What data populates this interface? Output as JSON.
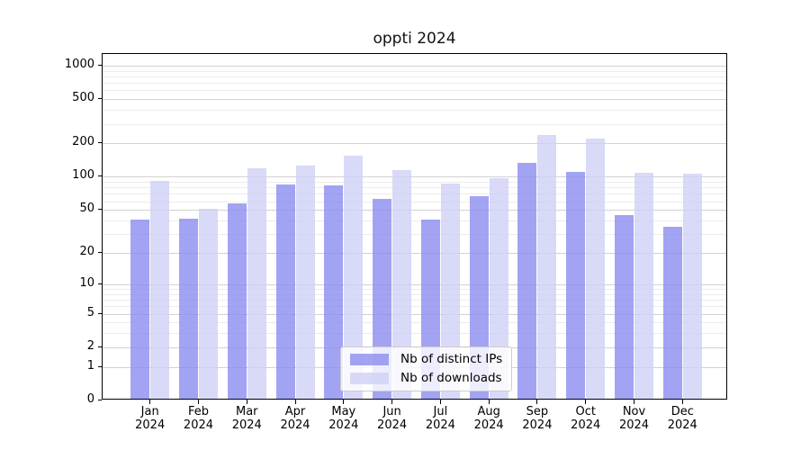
{
  "chart_data": {
    "type": "bar",
    "title": "oppti 2024",
    "categories": [
      "Jan",
      "Feb",
      "Mar",
      "Apr",
      "May",
      "Jun",
      "Jul",
      "Aug",
      "Sep",
      "Oct",
      "Nov",
      "Dec"
    ],
    "year_label": "2024",
    "series": [
      {
        "name": "Nb of distinct IPs",
        "color": "#8c8cf0",
        "values": [
          39,
          40,
          55,
          82,
          81,
          61,
          39,
          64,
          128,
          107,
          43,
          34
        ]
      },
      {
        "name": "Nb of downloads",
        "color": "#cfcff6",
        "values": [
          88,
          49,
          115,
          122,
          149,
          110,
          84,
          93,
          228,
          214,
          105,
          102
        ]
      }
    ],
    "yticks": [
      0,
      1,
      2,
      5,
      10,
      20,
      50,
      100,
      200,
      500,
      1000
    ],
    "ytick_labels": [
      "0",
      "1",
      "2",
      "5",
      "10",
      "20",
      "50",
      "100",
      "200",
      "500",
      "1000"
    ],
    "minor_yticks": [
      3,
      4,
      6,
      7,
      8,
      9,
      30,
      40,
      60,
      70,
      80,
      90,
      300,
      400,
      600,
      700,
      800,
      900
    ],
    "scale": "log10(1+v)",
    "ylim": [
      0,
      1274
    ],
    "grid": true,
    "legend_position": "lower center",
    "colors": {
      "major_grid": "#d2d2d2",
      "minor_grid": "#ececec",
      "axis": "#000000",
      "background": "#ffffff"
    }
  }
}
